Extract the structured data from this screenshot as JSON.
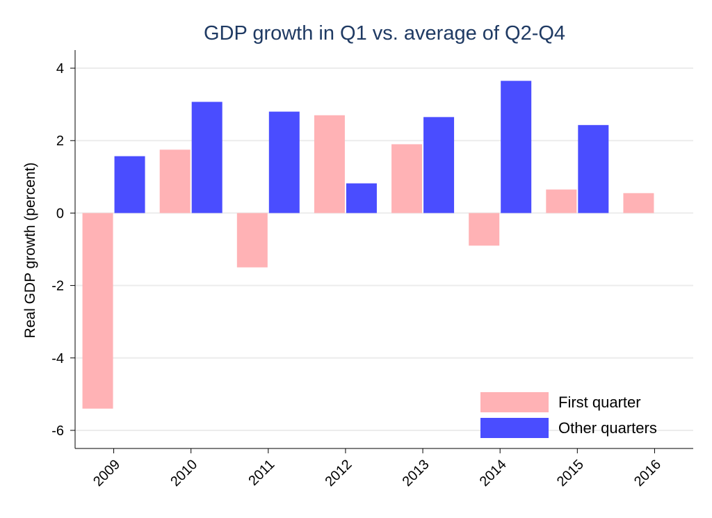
{
  "chart_data": {
    "type": "bar",
    "title": "GDP growth in Q1 vs. average of Q2-Q4",
    "xlabel": "",
    "ylabel": "Real GDP growth (percent)",
    "ylim": [
      -6.5,
      4.5
    ],
    "yticks": [
      4,
      2,
      0,
      -2,
      -4,
      -6
    ],
    "ytick_labels": [
      "4",
      "2",
      "0",
      "-2",
      "-4",
      "-6"
    ],
    "grid": true,
    "legend_position": "bottom-right",
    "categories": [
      "2009",
      "2010",
      "2011",
      "2012",
      "2013",
      "2014",
      "2015",
      "2016"
    ],
    "series": [
      {
        "name": "First quarter",
        "color": "#ffb2b5",
        "values": [
          -5.4,
          1.75,
          -1.5,
          2.7,
          1.9,
          -0.9,
          0.65,
          0.55
        ]
      },
      {
        "name": "Other quarters",
        "color": "#4a4dff",
        "values": [
          1.57,
          3.07,
          2.8,
          0.82,
          2.65,
          3.65,
          2.43,
          null
        ]
      }
    ]
  }
}
